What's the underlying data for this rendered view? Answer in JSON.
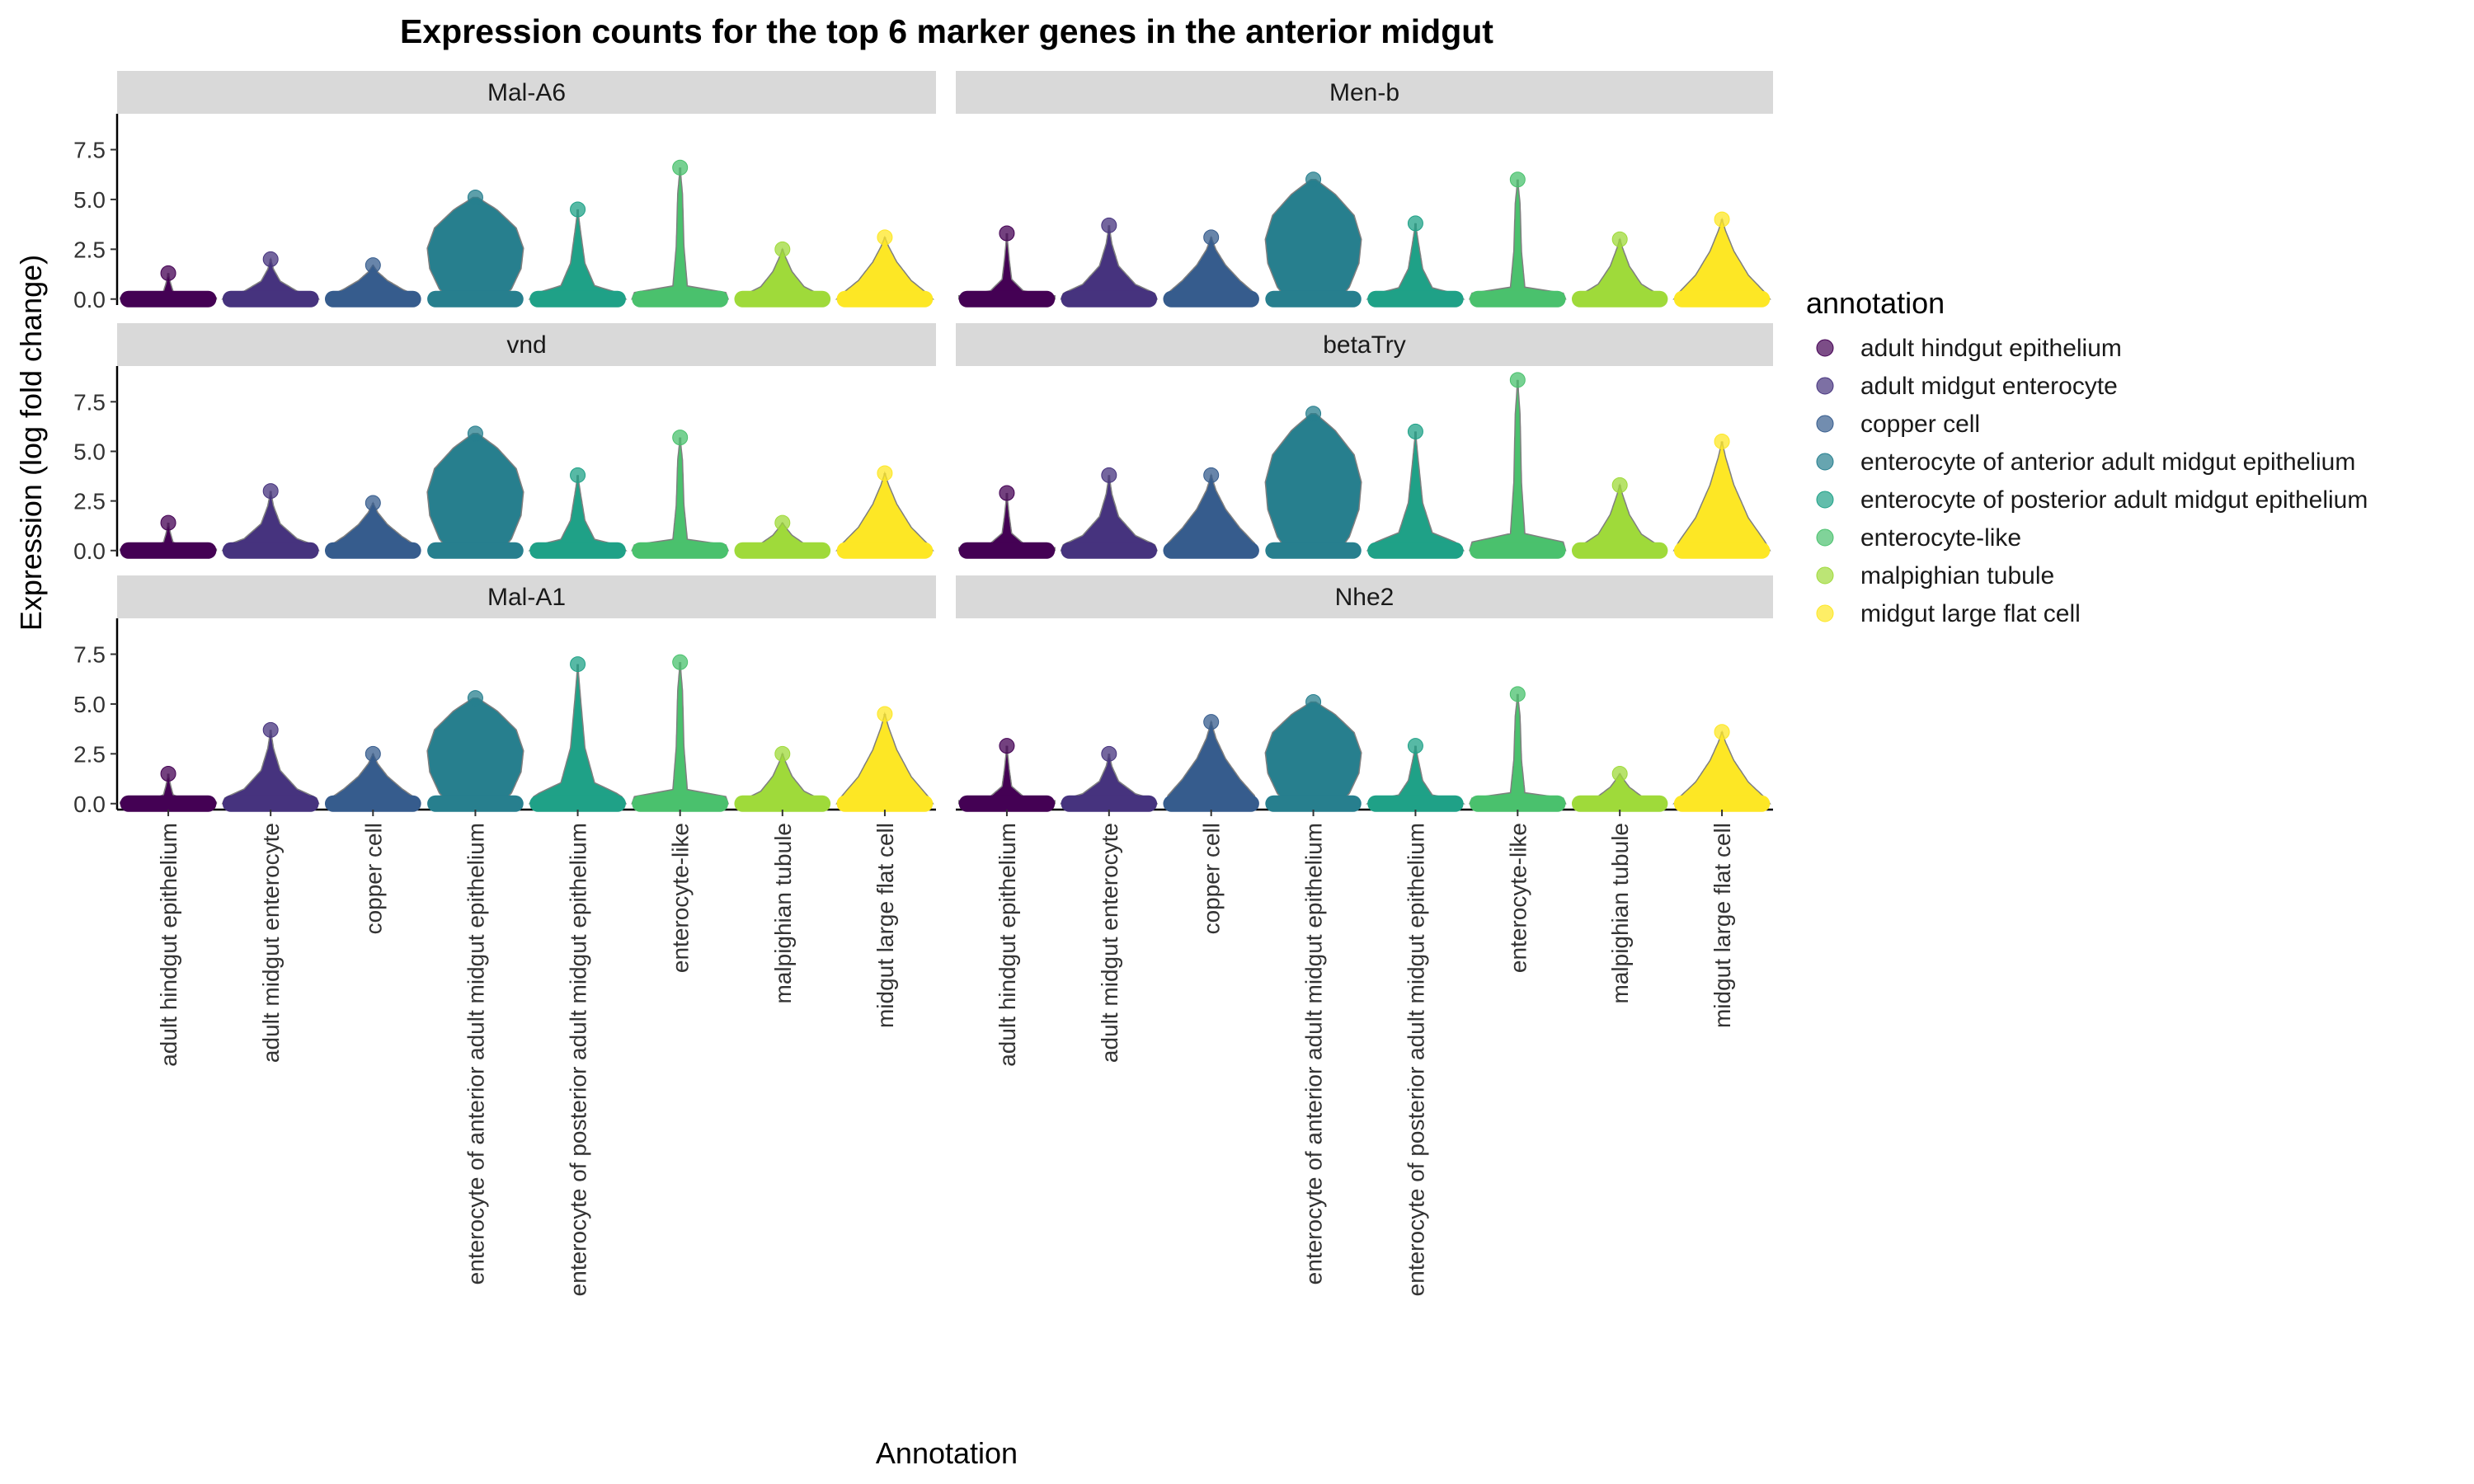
{
  "chart_data": {
    "type": "violin",
    "title": "Expression counts for the top 6 marker genes in the anterior midgut",
    "xlabel": "Annotation",
    "ylabel": "Expression (log fold change)",
    "ylim": [
      -0.3,
      9.3
    ],
    "y_ticks": [
      0.0,
      2.5,
      5.0,
      7.5
    ],
    "y_tick_labels": [
      "0.0",
      "2.5",
      "5.0",
      "7.5"
    ],
    "categories": [
      "adult hindgut epithelium",
      "adult midgut enterocyte",
      "copper cell",
      "enterocyte of anterior adult midgut epithelium",
      "enterocyte of posterior adult midgut epithelium",
      "enterocyte-like",
      "malpighian tubule",
      "midgut large flat cell"
    ],
    "colors": [
      "#440154",
      "#46337e",
      "#365c8d",
      "#277f8e",
      "#1fa187",
      "#4ac16d",
      "#9fda3a",
      "#fde725"
    ],
    "legend": {
      "title": "annotation",
      "position": "right",
      "entries": [
        "adult hindgut epithelium",
        "adult midgut enterocyte",
        "copper cell",
        "enterocyte of anterior adult midgut epithelium",
        "enterocyte of posterior adult midgut epithelium",
        "enterocyte-like",
        "malpighian tubule",
        "midgut large flat cell"
      ]
    },
    "grid": false,
    "panels": [
      {
        "gene": "Mal-A6",
        "max": [
          1.3,
          2.0,
          1.7,
          5.1,
          4.5,
          6.6,
          2.5,
          3.1
        ]
      },
      {
        "gene": "Men-b",
        "max": [
          3.3,
          3.7,
          3.1,
          6.0,
          3.8,
          6.0,
          3.0,
          4.0
        ]
      },
      {
        "gene": "vnd",
        "max": [
          1.4,
          3.0,
          2.4,
          5.9,
          3.8,
          5.7,
          1.4,
          3.9
        ]
      },
      {
        "gene": "betaTry",
        "max": [
          2.9,
          3.8,
          3.8,
          6.9,
          6.0,
          8.6,
          3.3,
          5.5
        ]
      },
      {
        "gene": "Mal-A1",
        "max": [
          1.5,
          3.7,
          2.5,
          5.3,
          7.0,
          7.1,
          2.5,
          4.5
        ]
      },
      {
        "gene": "Nhe2",
        "max": [
          2.9,
          2.5,
          4.1,
          5.1,
          2.9,
          5.5,
          1.5,
          3.6
        ]
      }
    ]
  }
}
